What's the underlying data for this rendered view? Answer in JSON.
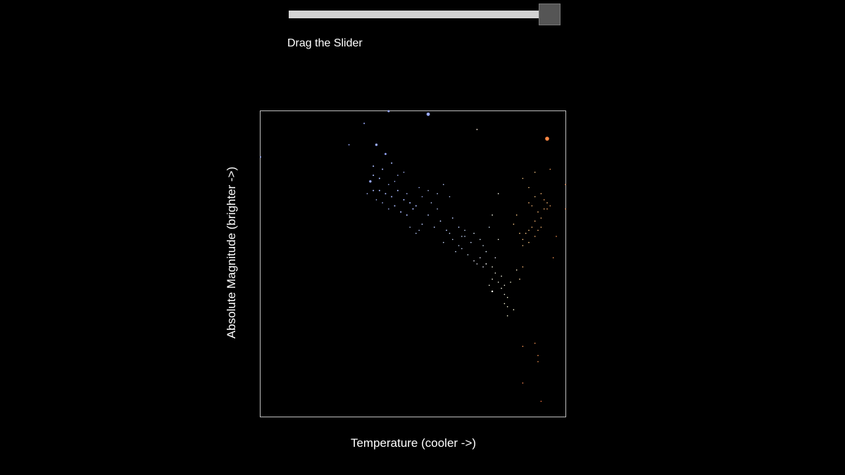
{
  "slider": {
    "label": "Drag the Slider",
    "value": 1.0
  },
  "chart_data": {
    "type": "scatter",
    "title": "",
    "xlabel": "Temperature (cooler ->)",
    "ylabel": "Absolute Magnitude (brighter ->)",
    "xlim": [
      0,
      1
    ],
    "ylim": [
      0,
      1
    ],
    "points": [
      [
        0.42,
        1.0,
        1.5,
        "#99aaff"
      ],
      [
        0.55,
        0.99,
        2.4,
        "#99aaff"
      ],
      [
        0.34,
        0.96,
        1.0,
        "#99aaff"
      ],
      [
        0.71,
        0.94,
        0.9,
        "#ffeedd"
      ],
      [
        0.94,
        0.91,
        2.8,
        "#ff8844"
      ],
      [
        0.29,
        0.89,
        0.9,
        "#99aaff"
      ],
      [
        0.38,
        0.89,
        1.7,
        "#99aaff"
      ],
      [
        0.0,
        0.85,
        1.0,
        "#99aaff"
      ],
      [
        0.41,
        0.86,
        1.4,
        "#99aaff"
      ],
      [
        0.43,
        0.83,
        1.0,
        "#aabbff"
      ],
      [
        0.37,
        0.82,
        1.0,
        "#aabbff"
      ],
      [
        0.4,
        0.81,
        1.0,
        "#aabbff"
      ],
      [
        0.37,
        0.79,
        1.0,
        "#aabbff"
      ],
      [
        0.39,
        0.78,
        1.0,
        "#aabbff"
      ],
      [
        0.36,
        0.77,
        1.7,
        "#99aaff"
      ],
      [
        0.45,
        0.79,
        0.8,
        "#aabbff"
      ],
      [
        0.47,
        0.8,
        0.8,
        "#aabbff"
      ],
      [
        0.37,
        0.74,
        1.0,
        "#aabbff"
      ],
      [
        0.39,
        0.74,
        1.0,
        "#aabbff"
      ],
      [
        0.41,
        0.73,
        1.0,
        "#aabbff"
      ],
      [
        0.43,
        0.72,
        1.0,
        "#aabbff"
      ],
      [
        0.45,
        0.74,
        1.0,
        "#aabbff"
      ],
      [
        0.47,
        0.71,
        1.0,
        "#aabbff"
      ],
      [
        0.49,
        0.7,
        1.0,
        "#aabbff"
      ],
      [
        0.51,
        0.69,
        1.0,
        "#aabbff"
      ],
      [
        0.53,
        0.72,
        0.8,
        "#aabbff"
      ],
      [
        0.44,
        0.69,
        1.0,
        "#aabbff"
      ],
      [
        0.46,
        0.67,
        1.0,
        "#aabbff"
      ],
      [
        0.48,
        0.66,
        1.0,
        "#aabbff"
      ],
      [
        0.5,
        0.68,
        1.0,
        "#aabbff"
      ],
      [
        0.35,
        0.73,
        0.8,
        "#aabbff"
      ],
      [
        0.55,
        0.74,
        0.8,
        "#bbccff"
      ],
      [
        0.58,
        0.73,
        0.8,
        "#bbccff"
      ],
      [
        0.6,
        0.76,
        0.8,
        "#bbccff"
      ],
      [
        0.62,
        0.72,
        0.8,
        "#bbccff"
      ],
      [
        0.53,
        0.63,
        0.9,
        "#bbccff"
      ],
      [
        0.55,
        0.66,
        0.9,
        "#bbccff"
      ],
      [
        0.57,
        0.62,
        0.9,
        "#bbccff"
      ],
      [
        0.59,
        0.64,
        0.9,
        "#bbccff"
      ],
      [
        0.61,
        0.61,
        0.9,
        "#bbccff"
      ],
      [
        0.63,
        0.65,
        0.9,
        "#bbccff"
      ],
      [
        0.65,
        0.62,
        0.9,
        "#bbccff"
      ],
      [
        0.49,
        0.62,
        0.8,
        "#bbccff"
      ],
      [
        0.51,
        0.6,
        0.8,
        "#bbccff"
      ],
      [
        0.6,
        0.57,
        0.8,
        "#ccddff"
      ],
      [
        0.63,
        0.58,
        0.8,
        "#ccddff"
      ],
      [
        0.65,
        0.56,
        0.8,
        "#ccddff"
      ],
      [
        0.67,
        0.59,
        0.8,
        "#ccddff"
      ],
      [
        0.69,
        0.57,
        0.8,
        "#ccddff"
      ],
      [
        0.64,
        0.54,
        0.8,
        "#ccddff"
      ],
      [
        0.66,
        0.55,
        0.8,
        "#ccddff"
      ],
      [
        0.7,
        0.6,
        0.8,
        "#ddeeff"
      ],
      [
        0.72,
        0.58,
        0.8,
        "#ddeeff"
      ],
      [
        0.75,
        0.62,
        0.8,
        "#ddeeff"
      ],
      [
        0.73,
        0.56,
        0.8,
        "#ddeeff"
      ],
      [
        0.68,
        0.53,
        0.8,
        "#ddeeff"
      ],
      [
        0.7,
        0.51,
        0.8,
        "#eeeeff"
      ],
      [
        0.72,
        0.52,
        0.8,
        "#eeeeff"
      ],
      [
        0.71,
        0.5,
        0.8,
        "#eeeeff"
      ],
      [
        0.73,
        0.49,
        0.8,
        "#eeeeff"
      ],
      [
        0.74,
        0.5,
        0.9,
        "#ffffff"
      ],
      [
        0.76,
        0.49,
        0.8,
        "#ffffee"
      ],
      [
        0.77,
        0.47,
        0.8,
        "#ffffee"
      ],
      [
        0.79,
        0.46,
        0.8,
        "#ffffee"
      ],
      [
        0.76,
        0.45,
        0.8,
        "#ffffee"
      ],
      [
        0.78,
        0.44,
        0.8,
        "#ffffee"
      ],
      [
        0.75,
        0.43,
        0.8,
        "#ffffee"
      ],
      [
        0.76,
        0.41,
        1.2,
        "#ffffee"
      ],
      [
        0.79,
        0.42,
        0.8,
        "#ffffee"
      ],
      [
        0.8,
        0.43,
        0.8,
        "#ffffee"
      ],
      [
        0.8,
        0.4,
        0.8,
        "#ffffee"
      ],
      [
        0.81,
        0.39,
        0.8,
        "#ffffdd"
      ],
      [
        0.8,
        0.37,
        0.8,
        "#ffffdd"
      ],
      [
        0.81,
        0.36,
        0.8,
        "#ffffdd"
      ],
      [
        0.83,
        0.35,
        0.8,
        "#ffffdd"
      ],
      [
        0.81,
        0.33,
        0.8,
        "#ffffdd"
      ],
      [
        0.78,
        0.58,
        0.8,
        "#ffffee"
      ],
      [
        0.76,
        0.66,
        0.8,
        "#ffffee"
      ],
      [
        0.78,
        0.73,
        0.8,
        "#ffffee"
      ],
      [
        0.86,
        0.78,
        0.8,
        "#ffcc88"
      ],
      [
        0.88,
        0.75,
        0.8,
        "#ffcc88"
      ],
      [
        0.9,
        0.72,
        0.8,
        "#ffcc88"
      ],
      [
        0.92,
        0.73,
        0.8,
        "#ffbb77"
      ],
      [
        0.94,
        0.7,
        0.8,
        "#ffbb77"
      ],
      [
        0.93,
        0.68,
        0.8,
        "#ffbb77"
      ],
      [
        0.91,
        0.67,
        0.8,
        "#ffbb77"
      ],
      [
        0.92,
        0.65,
        0.8,
        "#ffbb77"
      ],
      [
        0.9,
        0.64,
        0.8,
        "#ffbb77"
      ],
      [
        0.89,
        0.62,
        0.8,
        "#ffbb77"
      ],
      [
        0.88,
        0.61,
        0.8,
        "#ffcc88"
      ],
      [
        0.87,
        0.6,
        0.8,
        "#ffcc88"
      ],
      [
        0.86,
        0.58,
        0.8,
        "#ffcc88"
      ],
      [
        0.85,
        0.6,
        0.8,
        "#ffcc88"
      ],
      [
        0.86,
        0.56,
        0.8,
        "#ffcc88"
      ],
      [
        0.9,
        0.59,
        0.8,
        "#ffbb77"
      ],
      [
        0.92,
        0.62,
        0.8,
        "#ffbb77"
      ],
      [
        0.94,
        0.68,
        0.8,
        "#ffaa66"
      ],
      [
        0.95,
        0.69,
        0.8,
        "#ffaa66"
      ],
      [
        0.93,
        0.71,
        0.8,
        "#ffaa66"
      ],
      [
        0.89,
        0.69,
        0.8,
        "#ffbb77"
      ],
      [
        0.88,
        0.7,
        0.8,
        "#ffbb77"
      ],
      [
        0.84,
        0.66,
        0.8,
        "#ffcc88"
      ],
      [
        0.83,
        0.63,
        0.8,
        "#ffcc88"
      ],
      [
        0.9,
        0.8,
        0.8,
        "#ffcc88"
      ],
      [
        0.95,
        0.81,
        0.8,
        "#ffaa66"
      ],
      [
        1.0,
        0.76,
        0.8,
        "#ff9955"
      ],
      [
        1.0,
        0.68,
        0.8,
        "#ff9955"
      ],
      [
        0.97,
        0.59,
        0.8,
        "#ff9955"
      ],
      [
        0.96,
        0.52,
        0.8,
        "#ff9955"
      ],
      [
        0.86,
        0.49,
        0.8,
        "#ffbb77"
      ],
      [
        0.86,
        0.23,
        0.8,
        "#ff9955"
      ],
      [
        0.91,
        0.18,
        0.8,
        "#ff9955"
      ],
      [
        0.9,
        0.24,
        0.8,
        "#ff9955"
      ],
      [
        0.91,
        0.2,
        0.8,
        "#ff9955"
      ],
      [
        0.92,
        0.05,
        0.8,
        "#ff7744"
      ],
      [
        0.86,
        0.11,
        0.8,
        "#ff8855"
      ],
      [
        0.66,
        0.59,
        0.8,
        "#ccddff"
      ],
      [
        0.58,
        0.68,
        0.8,
        "#bbccff"
      ],
      [
        0.56,
        0.7,
        0.8,
        "#bbccff"
      ],
      [
        0.52,
        0.75,
        0.8,
        "#aabbff"
      ],
      [
        0.42,
        0.76,
        0.8,
        "#aabbff"
      ],
      [
        0.44,
        0.77,
        0.8,
        "#aabbff"
      ],
      [
        0.48,
        0.73,
        0.8,
        "#aabbff"
      ],
      [
        0.38,
        0.71,
        0.8,
        "#aabbff"
      ],
      [
        0.4,
        0.7,
        0.8,
        "#aabbff"
      ],
      [
        0.42,
        0.68,
        0.8,
        "#aabbff"
      ],
      [
        0.52,
        0.61,
        0.8,
        "#bbccff"
      ],
      [
        0.62,
        0.6,
        0.8,
        "#ccddff"
      ],
      [
        0.67,
        0.61,
        0.8,
        "#ccddff"
      ],
      [
        0.74,
        0.54,
        0.8,
        "#ddeeff"
      ],
      [
        0.77,
        0.52,
        0.8,
        "#eeeeff"
      ],
      [
        0.82,
        0.44,
        0.8,
        "#ffffdd"
      ],
      [
        0.84,
        0.48,
        0.8,
        "#ffeecc"
      ],
      [
        0.88,
        0.57,
        0.8,
        "#ffcc88"
      ],
      [
        0.91,
        0.61,
        0.8,
        "#ffbb77"
      ],
      [
        0.85,
        0.45,
        0.8,
        "#ffddaa"
      ]
    ]
  }
}
